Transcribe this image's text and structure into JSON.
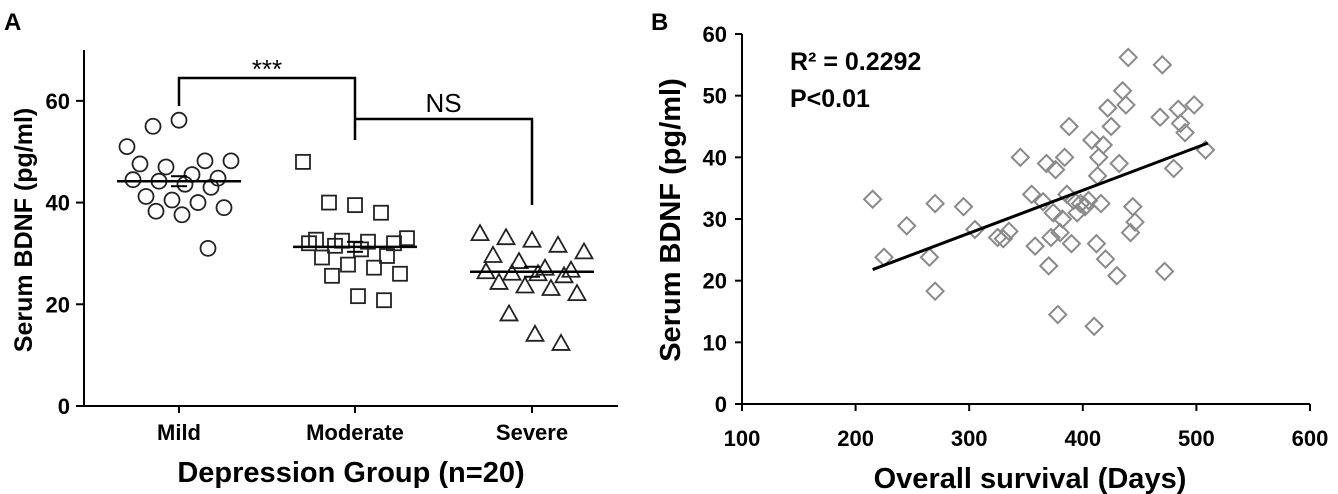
{
  "colors": {
    "axis": "#000000",
    "open_marker": "#222222",
    "scatter_marker": "#8a8a8a",
    "fit_line": "#000000"
  },
  "chart_data": [
    {
      "panel": "A",
      "type": "scatter",
      "xlabel": "Depression Group (n=20)",
      "ylabel": "Serum BDNF (pg/ml)",
      "ylim": [
        0,
        70
      ],
      "yticks": [
        "0",
        "20",
        "40",
        "60"
      ],
      "categories": [
        "Mild",
        "Moderate",
        "Severe"
      ],
      "series": [
        {
          "marker": "circle",
          "mean": 44.2,
          "values": [
            51,
            55,
            56.2,
            48.2,
            48.2,
            47.6,
            47,
            45.5,
            44.8,
            44.5,
            44.2,
            43.6,
            43,
            41.2,
            40.5,
            40,
            39,
            38.3,
            37.6,
            31
          ]
        },
        {
          "marker": "square",
          "mean": 31.3,
          "values": [
            48,
            40,
            39.5,
            38,
            33,
            32.7,
            32.5,
            32.3,
            32,
            32,
            31.5,
            30.8,
            29.5,
            29.2,
            27.8,
            27.2,
            26,
            25.6,
            21.6,
            20.8
          ]
        },
        {
          "marker": "triangle",
          "mean": 26.4,
          "values": [
            33.8,
            33,
            32.5,
            31.5,
            30.2,
            29.5,
            28.3,
            27,
            26.6,
            26.3,
            26,
            25.9,
            25.5,
            24.2,
            23.5,
            23,
            22,
            18,
            14,
            12.2
          ]
        }
      ],
      "comparisons": [
        {
          "groups": [
            "Mild",
            "Moderate"
          ],
          "label": "***"
        },
        {
          "groups": [
            "Moderate",
            "Severe"
          ],
          "label": "NS"
        }
      ]
    },
    {
      "panel": "B",
      "type": "scatter",
      "xlabel": "Overall survival (Days)",
      "ylabel": "Serum BDNF (pg/ml)",
      "xlim": [
        100,
        600
      ],
      "ylim": [
        0,
        60
      ],
      "xticks": [
        "100",
        "200",
        "300",
        "400",
        "500",
        "600"
      ],
      "yticks": [
        "0",
        "10",
        "20",
        "30",
        "40",
        "50",
        "60"
      ],
      "r2_label": "R² = 0.2292",
      "p_label": "P<0.01",
      "fit_line": {
        "x": [
          215,
          510
        ],
        "y": [
          21.8,
          42.3
        ]
      },
      "points": [
        [
          215,
          33.2
        ],
        [
          225,
          23.8
        ],
        [
          245,
          28.9
        ],
        [
          265,
          23.8
        ],
        [
          270,
          18.3
        ],
        [
          270,
          32.5
        ],
        [
          295,
          32
        ],
        [
          305,
          28.3
        ],
        [
          325,
          27
        ],
        [
          330,
          26.8
        ],
        [
          335,
          28
        ],
        [
          345,
          40
        ],
        [
          355,
          34
        ],
        [
          358,
          25.6
        ],
        [
          365,
          32.8
        ],
        [
          368,
          39
        ],
        [
          370,
          22.4
        ],
        [
          372,
          27
        ],
        [
          374,
          31
        ],
        [
          376,
          38
        ],
        [
          378,
          14.5
        ],
        [
          380,
          27.8
        ],
        [
          382,
          30
        ],
        [
          384,
          40
        ],
        [
          386,
          34
        ],
        [
          388,
          45
        ],
        [
          390,
          26
        ],
        [
          392,
          33
        ],
        [
          395,
          31
        ],
        [
          398,
          32.5
        ],
        [
          402,
          32
        ],
        [
          405,
          33
        ],
        [
          408,
          42.8
        ],
        [
          410,
          12.6
        ],
        [
          412,
          26
        ],
        [
          413,
          37
        ],
        [
          414,
          40
        ],
        [
          416,
          32.5
        ],
        [
          418,
          42
        ],
        [
          420,
          23.5
        ],
        [
          422,
          48
        ],
        [
          425,
          45
        ],
        [
          430,
          20.8
        ],
        [
          432,
          39
        ],
        [
          435,
          50.8
        ],
        [
          438,
          48.5
        ],
        [
          440,
          56.2
        ],
        [
          442,
          27.8
        ],
        [
          444,
          32
        ],
        [
          446,
          29.5
        ],
        [
          468,
          46.5
        ],
        [
          470,
          55
        ],
        [
          472,
          21.5
        ],
        [
          480,
          38.2
        ],
        [
          484,
          47.8
        ],
        [
          486,
          45.5
        ],
        [
          490,
          44
        ],
        [
          498,
          48.5
        ],
        [
          508,
          41.2
        ]
      ]
    }
  ],
  "labels": {
    "panel_a": "A",
    "panel_b": "B"
  }
}
